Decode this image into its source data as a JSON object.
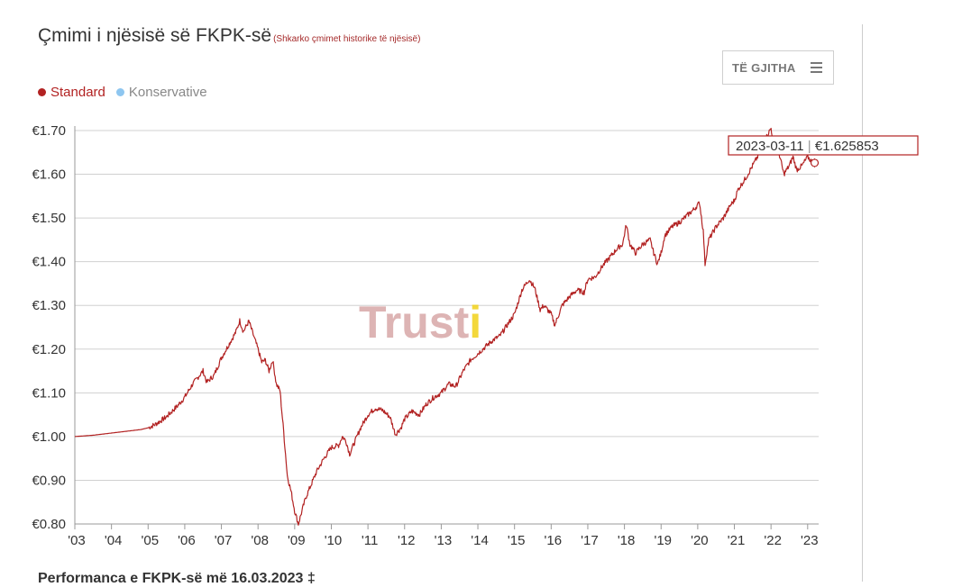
{
  "header": {
    "title": "Çmimi i njësisë së FKPK-së",
    "subtitle_link": "(Shkarko çmimet historike të njësisë)"
  },
  "range_button": {
    "label": "TË GJITHA",
    "icon": "menu-icon"
  },
  "legend": [
    {
      "name": "Standard",
      "color": "#b22222"
    },
    {
      "name": "Konservative",
      "color": "#8ec6f0"
    }
  ],
  "watermark": {
    "text_main": "Trust",
    "text_accent": "i"
  },
  "tooltip": {
    "date": "2023-03-11",
    "value": "€1.625853",
    "separator": " | "
  },
  "footer_partial": "Performanca e FKPK-së më 16.03.2023 ‡",
  "chart_data": {
    "type": "line",
    "x_axis": {
      "ticks": [
        "'03",
        "'04",
        "'05",
        "'06",
        "'07",
        "'08",
        "'09",
        "'10",
        "'11",
        "'12",
        "'13",
        "'14",
        "'15",
        "'16",
        "'17",
        "'18",
        "'19",
        "'20",
        "'21",
        "'22",
        "'23"
      ],
      "range": [
        2003,
        2023.3
      ]
    },
    "y_axis": {
      "ticks": [
        "€0.80",
        "€0.90",
        "€1.00",
        "€1.10",
        "€1.20",
        "€1.30",
        "€1.40",
        "€1.50",
        "€1.60",
        "€1.70"
      ],
      "range": [
        0.8,
        1.72
      ]
    },
    "grid": "horizontal",
    "series": [
      {
        "name": "Standard",
        "color": "#b22222",
        "points": [
          [
            2003.0,
            1.0
          ],
          [
            2003.5,
            1.003
          ],
          [
            2004.0,
            1.008
          ],
          [
            2004.5,
            1.013
          ],
          [
            2004.8,
            1.016
          ],
          [
            2005.0,
            1.02
          ],
          [
            2005.2,
            1.028
          ],
          [
            2005.5,
            1.045
          ],
          [
            2005.8,
            1.07
          ],
          [
            2006.0,
            1.09
          ],
          [
            2006.2,
            1.118
          ],
          [
            2006.4,
            1.14
          ],
          [
            2006.5,
            1.15
          ],
          [
            2006.6,
            1.124
          ],
          [
            2006.8,
            1.14
          ],
          [
            2007.0,
            1.18
          ],
          [
            2007.2,
            1.21
          ],
          [
            2007.4,
            1.24
          ],
          [
            2007.5,
            1.265
          ],
          [
            2007.6,
            1.24
          ],
          [
            2007.75,
            1.264
          ],
          [
            2007.9,
            1.225
          ],
          [
            2008.0,
            1.2
          ],
          [
            2008.1,
            1.17
          ],
          [
            2008.2,
            1.175
          ],
          [
            2008.3,
            1.15
          ],
          [
            2008.4,
            1.175
          ],
          [
            2008.5,
            1.12
          ],
          [
            2008.6,
            1.105
          ],
          [
            2008.7,
            1.01
          ],
          [
            2008.8,
            0.91
          ],
          [
            2008.9,
            0.875
          ],
          [
            2009.0,
            0.83
          ],
          [
            2009.1,
            0.8
          ],
          [
            2009.2,
            0.83
          ],
          [
            2009.3,
            0.86
          ],
          [
            2009.4,
            0.88
          ],
          [
            2009.6,
            0.92
          ],
          [
            2009.8,
            0.95
          ],
          [
            2010.0,
            0.975
          ],
          [
            2010.2,
            0.98
          ],
          [
            2010.3,
            1.0
          ],
          [
            2010.4,
            0.99
          ],
          [
            2010.5,
            0.96
          ],
          [
            2010.6,
            0.98
          ],
          [
            2010.8,
            1.02
          ],
          [
            2011.0,
            1.05
          ],
          [
            2011.2,
            1.065
          ],
          [
            2011.4,
            1.06
          ],
          [
            2011.6,
            1.045
          ],
          [
            2011.75,
            1.005
          ],
          [
            2011.9,
            1.02
          ],
          [
            2012.0,
            1.04
          ],
          [
            2012.2,
            1.058
          ],
          [
            2012.4,
            1.05
          ],
          [
            2012.6,
            1.075
          ],
          [
            2012.8,
            1.09
          ],
          [
            2013.0,
            1.1
          ],
          [
            2013.2,
            1.12
          ],
          [
            2013.4,
            1.115
          ],
          [
            2013.6,
            1.15
          ],
          [
            2013.8,
            1.175
          ],
          [
            2014.0,
            1.19
          ],
          [
            2014.2,
            1.205
          ],
          [
            2014.4,
            1.22
          ],
          [
            2014.6,
            1.23
          ],
          [
            2014.8,
            1.255
          ],
          [
            2015.0,
            1.28
          ],
          [
            2015.2,
            1.335
          ],
          [
            2015.4,
            1.36
          ],
          [
            2015.55,
            1.34
          ],
          [
            2015.7,
            1.29
          ],
          [
            2015.8,
            1.3
          ],
          [
            2016.0,
            1.28
          ],
          [
            2016.1,
            1.255
          ],
          [
            2016.3,
            1.3
          ],
          [
            2016.5,
            1.32
          ],
          [
            2016.7,
            1.335
          ],
          [
            2016.9,
            1.33
          ],
          [
            2017.0,
            1.36
          ],
          [
            2017.2,
            1.365
          ],
          [
            2017.4,
            1.39
          ],
          [
            2017.6,
            1.41
          ],
          [
            2017.8,
            1.43
          ],
          [
            2017.95,
            1.44
          ],
          [
            2018.05,
            1.485
          ],
          [
            2018.15,
            1.44
          ],
          [
            2018.3,
            1.42
          ],
          [
            2018.5,
            1.44
          ],
          [
            2018.7,
            1.45
          ],
          [
            2018.8,
            1.42
          ],
          [
            2018.9,
            1.395
          ],
          [
            2019.0,
            1.42
          ],
          [
            2019.1,
            1.46
          ],
          [
            2019.3,
            1.48
          ],
          [
            2019.5,
            1.49
          ],
          [
            2019.7,
            1.505
          ],
          [
            2019.9,
            1.52
          ],
          [
            2020.05,
            1.535
          ],
          [
            2020.15,
            1.47
          ],
          [
            2020.2,
            1.395
          ],
          [
            2020.3,
            1.45
          ],
          [
            2020.5,
            1.48
          ],
          [
            2020.7,
            1.5
          ],
          [
            2020.9,
            1.53
          ],
          [
            2021.0,
            1.54
          ],
          [
            2021.1,
            1.565
          ],
          [
            2021.3,
            1.59
          ],
          [
            2021.5,
            1.62
          ],
          [
            2021.7,
            1.65
          ],
          [
            2021.9,
            1.69
          ],
          [
            2022.0,
            1.705
          ],
          [
            2022.1,
            1.66
          ],
          [
            2022.2,
            1.655
          ],
          [
            2022.35,
            1.6
          ],
          [
            2022.5,
            1.62
          ],
          [
            2022.6,
            1.64
          ],
          [
            2022.7,
            1.61
          ],
          [
            2022.85,
            1.62
          ],
          [
            2023.0,
            1.64
          ],
          [
            2023.1,
            1.63
          ],
          [
            2023.19,
            1.626
          ]
        ]
      },
      {
        "name": "Konservative",
        "color": "#8ec6f0",
        "points": []
      }
    ]
  }
}
